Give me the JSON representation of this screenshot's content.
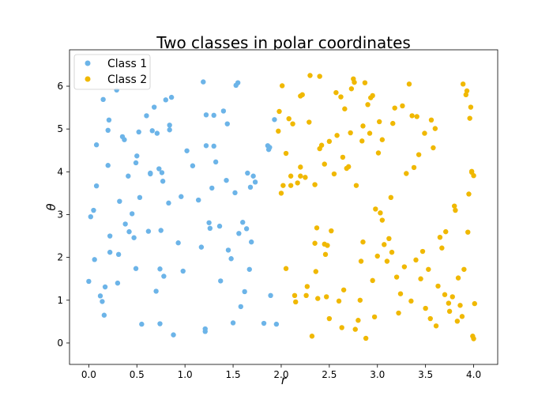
{
  "chart_data": {
    "type": "scatter",
    "title": "Two classes in polar coordinates",
    "xlabel": "r",
    "ylabel": "θ",
    "xlim": [
      -0.2,
      4.25
    ],
    "ylim": [
      -0.5,
      6.85
    ],
    "xticks": [
      0.0,
      0.5,
      1.0,
      1.5,
      2.0,
      2.5,
      3.0,
      3.5,
      4.0
    ],
    "xtick_labels": [
      "0.0",
      "0.5",
      "1.0",
      "1.5",
      "2.0",
      "2.5",
      "3.0",
      "3.5",
      "4.0"
    ],
    "yticks": [
      0,
      1,
      2,
      3,
      4,
      5,
      6
    ],
    "ytick_labels": [
      "0",
      "1",
      "2",
      "3",
      "4",
      "5",
      "6"
    ],
    "grid": false,
    "legend_position": "top-left",
    "series": [
      {
        "name": "Class 1",
        "color": "#6cb4e8",
        "points": [
          [
            0.0,
            1.44
          ],
          [
            0.02,
            2.95
          ],
          [
            0.05,
            3.1
          ],
          [
            0.06,
            1.95
          ],
          [
            0.08,
            3.67
          ],
          [
            0.08,
            4.63
          ],
          [
            0.12,
            1.1
          ],
          [
            0.14,
            0.97
          ],
          [
            0.15,
            5.69
          ],
          [
            0.16,
            0.65
          ],
          [
            0.17,
            1.31
          ],
          [
            0.2,
            4.15
          ],
          [
            0.2,
            4.97
          ],
          [
            0.21,
            5.21
          ],
          [
            0.22,
            2.5
          ],
          [
            0.22,
            2.12
          ],
          [
            0.29,
            5.91
          ],
          [
            0.3,
            1.4
          ],
          [
            0.31,
            2.07
          ],
          [
            0.32,
            3.31
          ],
          [
            0.35,
            4.82
          ],
          [
            0.37,
            4.75
          ],
          [
            0.38,
            2.78
          ],
          [
            0.41,
            3.9
          ],
          [
            0.42,
            2.6
          ],
          [
            0.45,
            3.02
          ],
          [
            0.47,
            2.46
          ],
          [
            0.49,
            1.74
          ],
          [
            0.49,
            4.21
          ],
          [
            0.5,
            4.37
          ],
          [
            0.52,
            4.93
          ],
          [
            0.53,
            3.4
          ],
          [
            0.55,
            0.44
          ],
          [
            0.6,
            5.31
          ],
          [
            0.62,
            2.61
          ],
          [
            0.64,
            3.95
          ],
          [
            0.64,
            3.97
          ],
          [
            0.66,
            4.96
          ],
          [
            0.68,
            5.51
          ],
          [
            0.7,
            1.21
          ],
          [
            0.71,
            4.9
          ],
          [
            0.73,
            4.07
          ],
          [
            0.74,
            0.45
          ],
          [
            0.74,
            1.73
          ],
          [
            0.75,
            2.63
          ],
          [
            0.76,
            3.98
          ],
          [
            0.77,
            3.78
          ],
          [
            0.78,
            1.56
          ],
          [
            0.8,
            5.68
          ],
          [
            0.83,
            3.27
          ],
          [
            0.84,
            4.98
          ],
          [
            0.84,
            5.09
          ],
          [
            0.86,
            5.74
          ],
          [
            0.88,
            0.19
          ],
          [
            0.93,
            2.34
          ],
          [
            0.96,
            3.42
          ],
          [
            0.98,
            1.68
          ],
          [
            1.02,
            4.49
          ],
          [
            1.08,
            4.14
          ],
          [
            1.14,
            3.34
          ],
          [
            1.17,
            2.24
          ],
          [
            1.19,
            6.1
          ],
          [
            1.21,
            0.27
          ],
          [
            1.21,
            0.33
          ],
          [
            1.22,
            5.33
          ],
          [
            1.22,
            4.61
          ],
          [
            1.25,
            2.81
          ],
          [
            1.26,
            2.68
          ],
          [
            1.28,
            3.62
          ],
          [
            1.3,
            5.32
          ],
          [
            1.3,
            4.6
          ],
          [
            1.32,
            4.23
          ],
          [
            1.36,
            2.73
          ],
          [
            1.37,
            1.45
          ],
          [
            1.4,
            5.42
          ],
          [
            1.43,
            3.8
          ],
          [
            1.44,
            5.12
          ],
          [
            1.45,
            2.17
          ],
          [
            1.48,
            1.97
          ],
          [
            1.5,
            0.47
          ],
          [
            1.52,
            3.51
          ],
          [
            1.53,
            6.02
          ],
          [
            1.55,
            6.08
          ],
          [
            1.56,
            2.56
          ],
          [
            1.58,
            0.85
          ],
          [
            1.6,
            2.82
          ],
          [
            1.62,
            1.2
          ],
          [
            1.64,
            2.67
          ],
          [
            1.65,
            3.97
          ],
          [
            1.67,
            1.72
          ],
          [
            1.68,
            3.64
          ],
          [
            1.69,
            2.36
          ],
          [
            1.71,
            3.9
          ],
          [
            1.73,
            3.76
          ],
          [
            1.82,
            0.46
          ],
          [
            1.86,
            4.61
          ],
          [
            1.87,
            4.52
          ],
          [
            1.88,
            4.57
          ],
          [
            1.89,
            1.11
          ],
          [
            1.93,
            5.22
          ],
          [
            1.95,
            0.44
          ]
        ]
      },
      {
        "name": "Class 2",
        "color": "#f0b800",
        "points": [
          [
            1.97,
            4.95
          ],
          [
            1.98,
            5.41
          ],
          [
            2.0,
            3.5
          ],
          [
            2.01,
            6.01
          ],
          [
            2.02,
            3.68
          ],
          [
            2.05,
            1.74
          ],
          [
            2.05,
            4.43
          ],
          [
            2.08,
            5.24
          ],
          [
            2.1,
            3.9
          ],
          [
            2.1,
            3.68
          ],
          [
            2.12,
            5.12
          ],
          [
            2.14,
            1.11
          ],
          [
            2.15,
            0.96
          ],
          [
            2.17,
            3.74
          ],
          [
            2.2,
            5.77
          ],
          [
            2.2,
            4.11
          ],
          [
            2.2,
            3.9
          ],
          [
            2.22,
            5.8
          ],
          [
            2.25,
            3.87
          ],
          [
            2.26,
            1.11
          ],
          [
            2.27,
            1.32
          ],
          [
            2.29,
            5.16
          ],
          [
            2.3,
            6.25
          ],
          [
            2.32,
            0.16
          ],
          [
            2.35,
            3.7
          ],
          [
            2.35,
            2.33
          ],
          [
            2.36,
            1.67
          ],
          [
            2.37,
            2.69
          ],
          [
            2.38,
            1.04
          ],
          [
            2.4,
            6.23
          ],
          [
            2.4,
            4.54
          ],
          [
            2.42,
            4.62
          ],
          [
            2.45,
            4.18
          ],
          [
            2.45,
            2.31
          ],
          [
            2.46,
            2.07
          ],
          [
            2.47,
            1.08
          ],
          [
            2.48,
            2.28
          ],
          [
            2.5,
            4.71
          ],
          [
            2.5,
            0.57
          ],
          [
            2.52,
            2.62
          ],
          [
            2.55,
            3.95
          ],
          [
            2.57,
            5.85
          ],
          [
            2.58,
            4.85
          ],
          [
            2.6,
            0.98
          ],
          [
            2.62,
            5.75
          ],
          [
            2.63,
            0.36
          ],
          [
            2.64,
            4.34
          ],
          [
            2.65,
            1.24
          ],
          [
            2.66,
            5.47
          ],
          [
            2.68,
            4.08
          ],
          [
            2.7,
            4.12
          ],
          [
            2.72,
            4.91
          ],
          [
            2.73,
            5.94
          ],
          [
            2.75,
            6.17
          ],
          [
            2.76,
            6.09
          ],
          [
            2.77,
            0.32
          ],
          [
            2.78,
            3.68
          ],
          [
            2.8,
            0.53
          ],
          [
            2.82,
            1.0
          ],
          [
            2.83,
            1.91
          ],
          [
            2.84,
            4.72
          ],
          [
            2.85,
            5.07
          ],
          [
            2.85,
            2.36
          ],
          [
            2.87,
            6.08
          ],
          [
            2.88,
            0.11
          ],
          [
            2.9,
            5.57
          ],
          [
            2.92,
            4.9
          ],
          [
            2.93,
            5.73
          ],
          [
            2.95,
            5.78
          ],
          [
            2.95,
            1.46
          ],
          [
            2.97,
            0.61
          ],
          [
            2.98,
            3.13
          ],
          [
            3.0,
            2.03
          ],
          [
            3.01,
            4.44
          ],
          [
            3.02,
            5.17
          ],
          [
            3.03,
            3.04
          ],
          [
            3.05,
            2.87
          ],
          [
            3.05,
            4.75
          ],
          [
            3.07,
            2.3
          ],
          [
            3.1,
            1.91
          ],
          [
            3.12,
            2.44
          ],
          [
            3.14,
            3.4
          ],
          [
            3.15,
            2.12
          ],
          [
            3.16,
            5.13
          ],
          [
            3.18,
            5.49
          ],
          [
            3.2,
            1.54
          ],
          [
            3.22,
            0.7
          ],
          [
            3.24,
            1.15
          ],
          [
            3.26,
            5.54
          ],
          [
            3.28,
            1.78
          ],
          [
            3.3,
            3.96
          ],
          [
            3.33,
            6.05
          ],
          [
            3.35,
            0.98
          ],
          [
            3.36,
            5.31
          ],
          [
            3.38,
            4.1
          ],
          [
            3.4,
            1.94
          ],
          [
            3.41,
            5.29
          ],
          [
            3.43,
            4.4
          ],
          [
            3.45,
            1.5
          ],
          [
            3.47,
            2.14
          ],
          [
            3.49,
            4.9
          ],
          [
            3.5,
            0.81
          ],
          [
            3.53,
            1.72
          ],
          [
            3.55,
            0.57
          ],
          [
            3.56,
            5.21
          ],
          [
            3.58,
            4.56
          ],
          [
            3.6,
            5.01
          ],
          [
            3.61,
            0.4
          ],
          [
            3.63,
            1.33
          ],
          [
            3.65,
            2.47
          ],
          [
            3.67,
            2.22
          ],
          [
            3.7,
            1.13
          ],
          [
            3.71,
            2.6
          ],
          [
            3.74,
            0.93
          ],
          [
            3.75,
            0.74
          ],
          [
            3.78,
            1.08
          ],
          [
            3.8,
            3.2
          ],
          [
            3.81,
            3.1
          ],
          [
            3.83,
            0.51
          ],
          [
            3.84,
            1.52
          ],
          [
            3.86,
            0.88
          ],
          [
            3.88,
            0.62
          ],
          [
            3.89,
            6.05
          ],
          [
            3.9,
            1.72
          ],
          [
            3.92,
            5.8
          ],
          [
            3.93,
            5.89
          ],
          [
            3.94,
            2.59
          ],
          [
            3.95,
            3.48
          ],
          [
            3.96,
            5.25
          ],
          [
            3.97,
            5.51
          ],
          [
            3.98,
            3.99
          ],
          [
            3.98,
            4.01
          ],
          [
            3.99,
            0.16
          ],
          [
            4.0,
            0.1
          ],
          [
            4.0,
            3.91
          ],
          [
            4.01,
            0.92
          ]
        ]
      }
    ]
  }
}
